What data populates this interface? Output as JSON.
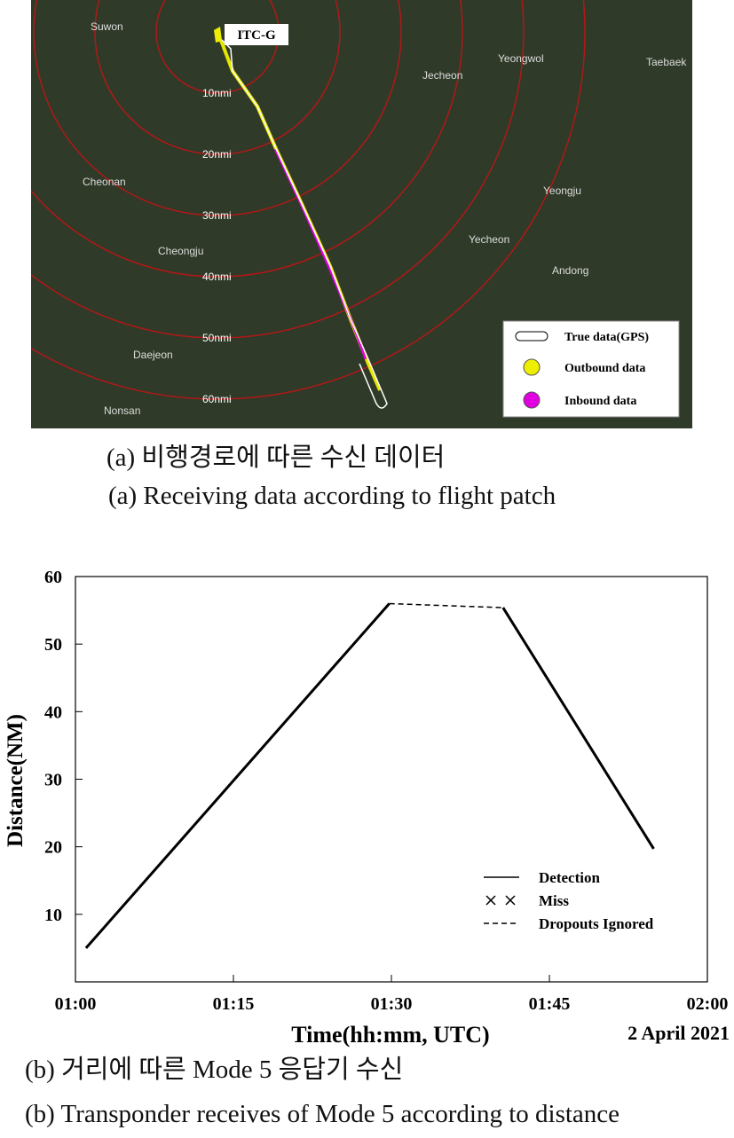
{
  "map": {
    "site": "ITC-G",
    "rings": [
      "10nmi",
      "20nmi",
      "30nmi",
      "40nmi",
      "50nmi",
      "60nmi"
    ],
    "cities": [
      "Suwon",
      "Jecheon",
      "Yeongwol",
      "Taebaek",
      "Cheonan",
      "Yeongju",
      "Cheongju",
      "Yecheon",
      "Andong",
      "Daejeon",
      "Nonsan"
    ],
    "legend": [
      "True data(GPS)",
      "Outbound data",
      "Inbound data"
    ]
  },
  "caption_a": {
    "korean": "(a) 비행경로에 따른 수신 데이터",
    "english": "(a) Receiving data according to flight patch"
  },
  "chart_data": {
    "type": "line",
    "x": [
      61,
      89.8,
      95,
      100.6,
      114.9
    ],
    "series": [
      {
        "name": "Detection",
        "color": "#000000",
        "style": "solid",
        "values": [
          5,
          56,
          null,
          55.4,
          19.7
        ]
      },
      {
        "name": "Miss",
        "color": "#000000",
        "style": "cross",
        "values": [
          null,
          null,
          null,
          null,
          null
        ]
      },
      {
        "name": "Dropouts Ignored",
        "color": "#000000",
        "style": "dashed",
        "values": [
          null,
          56,
          55.7,
          55.4,
          null
        ]
      }
    ],
    "xlim": [
      60,
      120
    ],
    "xticks": [
      {
        "value": 60,
        "label": "01:00"
      },
      {
        "value": 75,
        "label": "01:15"
      },
      {
        "value": 90,
        "label": "01:30"
      },
      {
        "value": 105,
        "label": "01:45"
      },
      {
        "value": 120,
        "label": "02:00"
      }
    ],
    "ylim": [
      0,
      60
    ],
    "yticks": [
      10,
      20,
      30,
      40,
      50,
      60
    ],
    "xlabel": "Time(hh:mm, UTC)",
    "ylabel": "Distance(NM)",
    "annotation": "2  April  2021"
  },
  "caption_b": {
    "korean": "(b) 거리에 따른 Mode 5 응답기 수신",
    "english": "(b) Transponder receives of Mode 5 according to distance"
  }
}
